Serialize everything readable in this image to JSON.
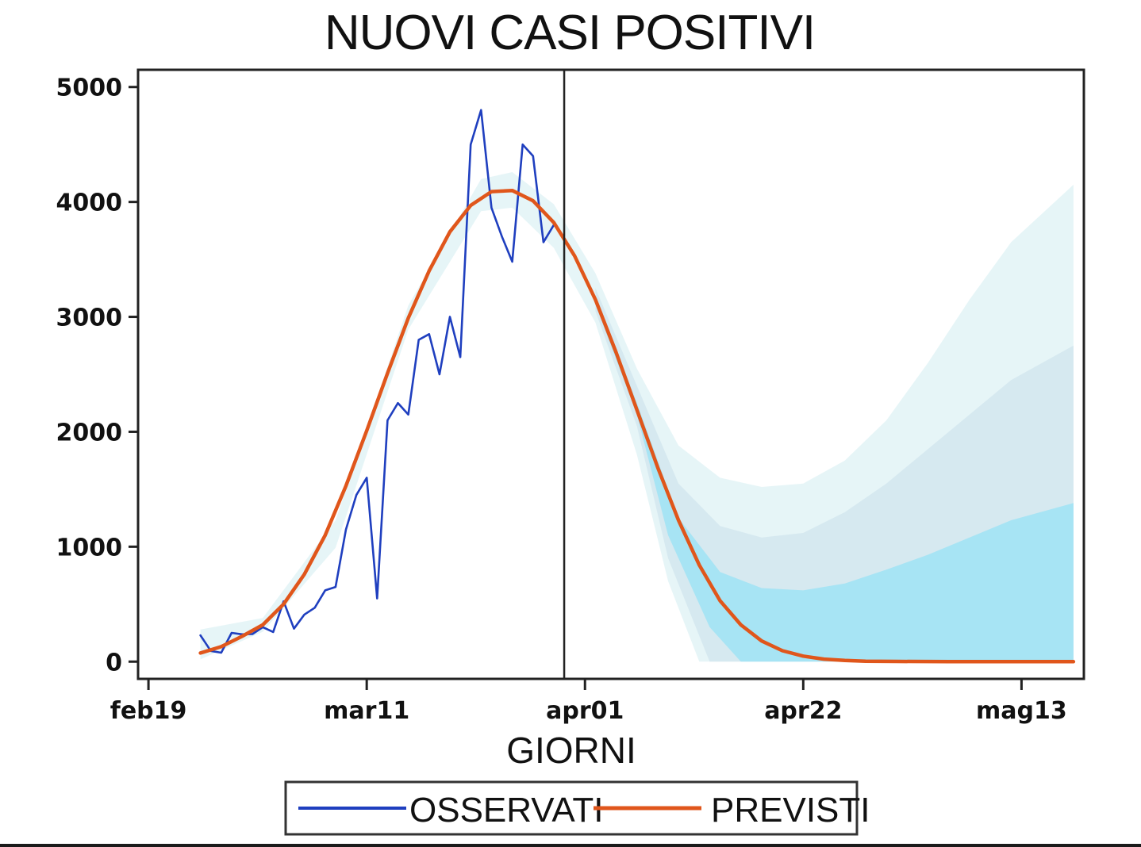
{
  "chart_data": {
    "type": "line",
    "title": "NUOVI CASI POSITIVI",
    "xlabel": "GIORNI",
    "ylabel": "",
    "x_axis": {
      "type": "date",
      "ticks": [
        {
          "date": "2020-02-19",
          "label": "feb19"
        },
        {
          "date": "2020-03-11",
          "label": "mar11"
        },
        {
          "date": "2020-04-01",
          "label": "apr01"
        },
        {
          "date": "2020-04-22",
          "label": "apr22"
        },
        {
          "date": "2020-05-13",
          "label": "mag13"
        }
      ],
      "range": [
        "2020-02-18",
        "2020-05-19"
      ]
    },
    "y_axis": {
      "ticks": [
        0,
        1000,
        2000,
        3000,
        4000,
        5000
      ],
      "range": [
        -150,
        5150
      ]
    },
    "grid": false,
    "legend": {
      "position": "bottom",
      "entries": [
        {
          "label": "OSSERVATI",
          "color": "#1f3fbf"
        },
        {
          "label": "PREVISTI",
          "color": "#e0561b"
        }
      ]
    },
    "vline": {
      "date": "2020-03-30"
    },
    "colors": {
      "observed": "#1f3fbf",
      "predicted": "#e0561b",
      "band_outer": "#e3f4f6",
      "band_middle": "#d2e6ef",
      "band_inner": "#9fe3f5"
    },
    "series": [
      {
        "name": "OSSERVATI",
        "points": [
          [
            "2020-02-24",
            229
          ],
          [
            "2020-02-25",
            93
          ],
          [
            "2020-02-26",
            78
          ],
          [
            "2020-02-27",
            250
          ],
          [
            "2020-02-28",
            238
          ],
          [
            "2020-02-29",
            240
          ],
          [
            "2020-03-01",
            300
          ],
          [
            "2020-03-02",
            258
          ],
          [
            "2020-03-03",
            525
          ],
          [
            "2020-03-04",
            287
          ],
          [
            "2020-03-05",
            410
          ],
          [
            "2020-03-06",
            469
          ],
          [
            "2020-03-07",
            620
          ],
          [
            "2020-03-08",
            650
          ],
          [
            "2020-03-09",
            1150
          ],
          [
            "2020-03-10",
            1450
          ],
          [
            "2020-03-11",
            1600
          ],
          [
            "2020-03-12",
            550
          ],
          [
            "2020-03-13",
            2100
          ],
          [
            "2020-03-14",
            2250
          ],
          [
            "2020-03-15",
            2150
          ],
          [
            "2020-03-16",
            2800
          ],
          [
            "2020-03-17",
            2850
          ],
          [
            "2020-03-18",
            2500
          ],
          [
            "2020-03-19",
            3000
          ],
          [
            "2020-03-20",
            2650
          ],
          [
            "2020-03-21",
            4500
          ],
          [
            "2020-03-22",
            4800
          ],
          [
            "2020-03-23",
            3950
          ],
          [
            "2020-03-24",
            3700
          ],
          [
            "2020-03-25",
            3480
          ],
          [
            "2020-03-26",
            4500
          ],
          [
            "2020-03-27",
            4400
          ],
          [
            "2020-03-28",
            3650
          ],
          [
            "2020-03-29",
            3800
          ]
        ]
      },
      {
        "name": "PREVISTI",
        "points": [
          [
            "2020-02-24",
            75
          ],
          [
            "2020-02-26",
            130
          ],
          [
            "2020-02-28",
            220
          ],
          [
            "2020-03-01",
            320
          ],
          [
            "2020-03-03",
            500
          ],
          [
            "2020-03-05",
            760
          ],
          [
            "2020-03-07",
            1100
          ],
          [
            "2020-03-09",
            1530
          ],
          [
            "2020-03-11",
            2010
          ],
          [
            "2020-03-13",
            2510
          ],
          [
            "2020-03-15",
            2990
          ],
          [
            "2020-03-17",
            3400
          ],
          [
            "2020-03-19",
            3740
          ],
          [
            "2020-03-21",
            3970
          ],
          [
            "2020-03-23",
            4090
          ],
          [
            "2020-03-25",
            4100
          ],
          [
            "2020-03-27",
            4010
          ],
          [
            "2020-03-29",
            3820
          ],
          [
            "2020-03-31",
            3530
          ],
          [
            "2020-04-02",
            3150
          ],
          [
            "2020-04-04",
            2690
          ],
          [
            "2020-04-06",
            2190
          ],
          [
            "2020-04-08",
            1690
          ],
          [
            "2020-04-10",
            1230
          ],
          [
            "2020-04-12",
            840
          ],
          [
            "2020-04-14",
            530
          ],
          [
            "2020-04-16",
            320
          ],
          [
            "2020-04-18",
            180
          ],
          [
            "2020-04-20",
            95
          ],
          [
            "2020-04-22",
            48
          ],
          [
            "2020-04-24",
            22
          ],
          [
            "2020-04-26",
            10
          ],
          [
            "2020-04-28",
            4
          ],
          [
            "2020-05-01",
            2
          ],
          [
            "2020-05-06",
            0
          ],
          [
            "2020-05-12",
            0
          ],
          [
            "2020-05-18",
            0
          ]
        ]
      }
    ],
    "bands": [
      {
        "level": "outer",
        "upper": [
          [
            "2020-02-24",
            280
          ],
          [
            "2020-03-01",
            380
          ],
          [
            "2020-03-08",
            1230
          ],
          [
            "2020-03-15",
            3100
          ],
          [
            "2020-03-22",
            4200
          ],
          [
            "2020-03-25",
            4260
          ],
          [
            "2020-03-29",
            3980
          ],
          [
            "2020-04-02",
            3380
          ],
          [
            "2020-04-06",
            2550
          ],
          [
            "2020-04-10",
            1880
          ],
          [
            "2020-04-14",
            1600
          ],
          [
            "2020-04-18",
            1520
          ],
          [
            "2020-04-22",
            1550
          ],
          [
            "2020-04-26",
            1750
          ],
          [
            "2020-04-30",
            2100
          ],
          [
            "2020-05-04",
            2600
          ],
          [
            "2020-05-08",
            3150
          ],
          [
            "2020-05-12",
            3650
          ],
          [
            "2020-05-18",
            4150
          ]
        ],
        "lower": [
          [
            "2020-02-24",
            20
          ],
          [
            "2020-03-01",
            260
          ],
          [
            "2020-03-08",
            990
          ],
          [
            "2020-03-15",
            2890
          ],
          [
            "2020-03-22",
            3920
          ],
          [
            "2020-03-25",
            3950
          ],
          [
            "2020-03-29",
            3600
          ],
          [
            "2020-04-02",
            2950
          ],
          [
            "2020-04-06",
            1800
          ],
          [
            "2020-04-09",
            700
          ],
          [
            "2020-04-12",
            0
          ],
          [
            "2020-05-18",
            0
          ]
        ]
      },
      {
        "level": "middle",
        "upper": [
          [
            "2020-04-02",
            3250
          ],
          [
            "2020-04-06",
            2400
          ],
          [
            "2020-04-10",
            1550
          ],
          [
            "2020-04-14",
            1180
          ],
          [
            "2020-04-18",
            1080
          ],
          [
            "2020-04-22",
            1120
          ],
          [
            "2020-04-26",
            1300
          ],
          [
            "2020-04-30",
            1550
          ],
          [
            "2020-05-04",
            1850
          ],
          [
            "2020-05-08",
            2150
          ],
          [
            "2020-05-12",
            2450
          ],
          [
            "2020-05-18",
            2750
          ]
        ],
        "lower": [
          [
            "2020-04-02",
            3050
          ],
          [
            "2020-04-06",
            2050
          ],
          [
            "2020-04-09",
            900
          ],
          [
            "2020-04-13",
            0
          ],
          [
            "2020-05-18",
            0
          ]
        ]
      },
      {
        "level": "inner",
        "upper": [
          [
            "2020-04-02",
            3180
          ],
          [
            "2020-04-06",
            2250
          ],
          [
            "2020-04-10",
            1250
          ],
          [
            "2020-04-14",
            780
          ],
          [
            "2020-04-18",
            640
          ],
          [
            "2020-04-22",
            620
          ],
          [
            "2020-04-26",
            680
          ],
          [
            "2020-04-30",
            800
          ],
          [
            "2020-05-04",
            930
          ],
          [
            "2020-05-08",
            1080
          ],
          [
            "2020-05-12",
            1230
          ],
          [
            "2020-05-18",
            1380
          ]
        ],
        "lower": [
          [
            "2020-04-02",
            3110
          ],
          [
            "2020-04-06",
            2150
          ],
          [
            "2020-04-09",
            1100
          ],
          [
            "2020-04-13",
            300
          ],
          [
            "2020-04-16",
            0
          ],
          [
            "2020-05-18",
            0
          ]
        ]
      }
    ]
  }
}
